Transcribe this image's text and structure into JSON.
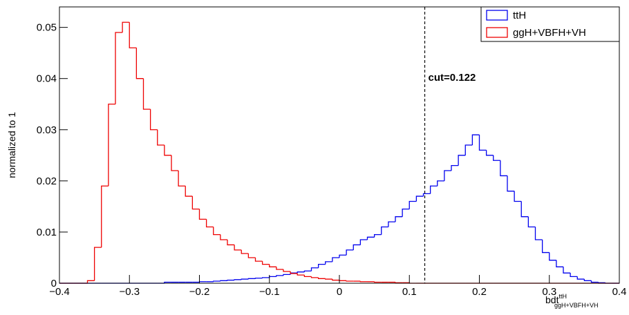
{
  "chart_data": {
    "type": "histogram",
    "ylabel": "normalized to 1",
    "xlabel": {
      "base": "bdt",
      "sup": "ttH",
      "sub": "ggH+VBFH+VH"
    },
    "xlim": [
      -0.4,
      0.4
    ],
    "ylim": [
      0,
      0.054
    ],
    "xticks": [
      {
        "value": -0.4,
        "label": "−0.4"
      },
      {
        "value": -0.3,
        "label": "−0.3"
      },
      {
        "value": -0.2,
        "label": "−0.2"
      },
      {
        "value": -0.1,
        "label": "−0.1"
      },
      0,
      0.1,
      0.2,
      0.3,
      0.4
    ],
    "yticks": [
      0,
      0.01,
      0.02,
      0.03,
      0.04,
      0.05
    ],
    "cut": 0.122,
    "annotation": "cut=0.122",
    "legend": "top-right",
    "bins": [
      -0.4,
      -0.39,
      -0.38,
      -0.37,
      -0.36,
      -0.35,
      -0.34,
      -0.33,
      -0.32,
      -0.31,
      -0.3,
      -0.29,
      -0.28,
      -0.27,
      -0.26,
      -0.25,
      -0.24,
      -0.23,
      -0.22,
      -0.21,
      -0.2,
      -0.19,
      -0.18,
      -0.17,
      -0.16,
      -0.15,
      -0.14,
      -0.13,
      -0.12,
      -0.11,
      -0.1,
      -0.09,
      -0.08,
      -0.07,
      -0.06,
      -0.05,
      -0.04,
      -0.03,
      -0.02,
      -0.01,
      0,
      0.01,
      0.02,
      0.03,
      0.04,
      0.05,
      0.06,
      0.07,
      0.08,
      0.09,
      0.1,
      0.11,
      0.12,
      0.13,
      0.14,
      0.15,
      0.16,
      0.17,
      0.18,
      0.19,
      0.2,
      0.21,
      0.22,
      0.23,
      0.24,
      0.25,
      0.26,
      0.27,
      0.28,
      0.29,
      0.3,
      0.31,
      0.32,
      0.33,
      0.34,
      0.35,
      0.36,
      0.37,
      0.38,
      0.39,
      0.4
    ],
    "series": [
      {
        "name": "ttH",
        "color": "#0000ee",
        "values": [
          0,
          0,
          0,
          0,
          0,
          0,
          0,
          0,
          0,
          0,
          0,
          0,
          0,
          0,
          0,
          0.0002,
          0.0002,
          0.0002,
          0.0002,
          0.0002,
          0.0003,
          0.0003,
          0.0004,
          0.0005,
          0.0006,
          0.0007,
          0.0008,
          0.0009,
          0.001,
          0.0011,
          0.0013,
          0.0015,
          0.0017,
          0.002,
          0.0022,
          0.0024,
          0.003,
          0.0037,
          0.0042,
          0.005,
          0.0055,
          0.0065,
          0.0075,
          0.0085,
          0.009,
          0.0095,
          0.011,
          0.012,
          0.013,
          0.0145,
          0.016,
          0.017,
          0.0175,
          0.019,
          0.02,
          0.022,
          0.023,
          0.025,
          0.027,
          0.029,
          0.026,
          0.025,
          0.024,
          0.021,
          0.018,
          0.016,
          0.013,
          0.011,
          0.0085,
          0.006,
          0.0045,
          0.0032,
          0.002,
          0.0013,
          0.0008,
          0.0005,
          0.0002,
          0.0001,
          0,
          0
        ]
      },
      {
        "name": "ggH+VBFH+VH",
        "color": "#ee0000",
        "values": [
          0,
          0,
          0,
          0,
          0.0005,
          0.007,
          0.019,
          0.035,
          0.049,
          0.051,
          0.046,
          0.04,
          0.034,
          0.03,
          0.027,
          0.025,
          0.022,
          0.019,
          0.017,
          0.0145,
          0.0125,
          0.011,
          0.0095,
          0.0085,
          0.0075,
          0.0065,
          0.0058,
          0.005,
          0.0043,
          0.0037,
          0.0032,
          0.0027,
          0.0023,
          0.0019,
          0.0016,
          0.0013,
          0.0011,
          0.0009,
          0.0008,
          0.0006,
          0.0005,
          0.0004,
          0.0004,
          0.0003,
          0.0003,
          0.0002,
          0.0002,
          0.0002,
          0.0001,
          0.0001,
          0,
          0,
          0,
          0,
          0,
          0,
          0,
          0,
          0,
          0,
          0,
          0,
          0,
          0,
          0,
          0,
          0,
          0,
          0,
          0,
          0,
          0,
          0,
          0,
          0,
          0,
          0,
          0,
          0,
          0
        ]
      }
    ]
  }
}
